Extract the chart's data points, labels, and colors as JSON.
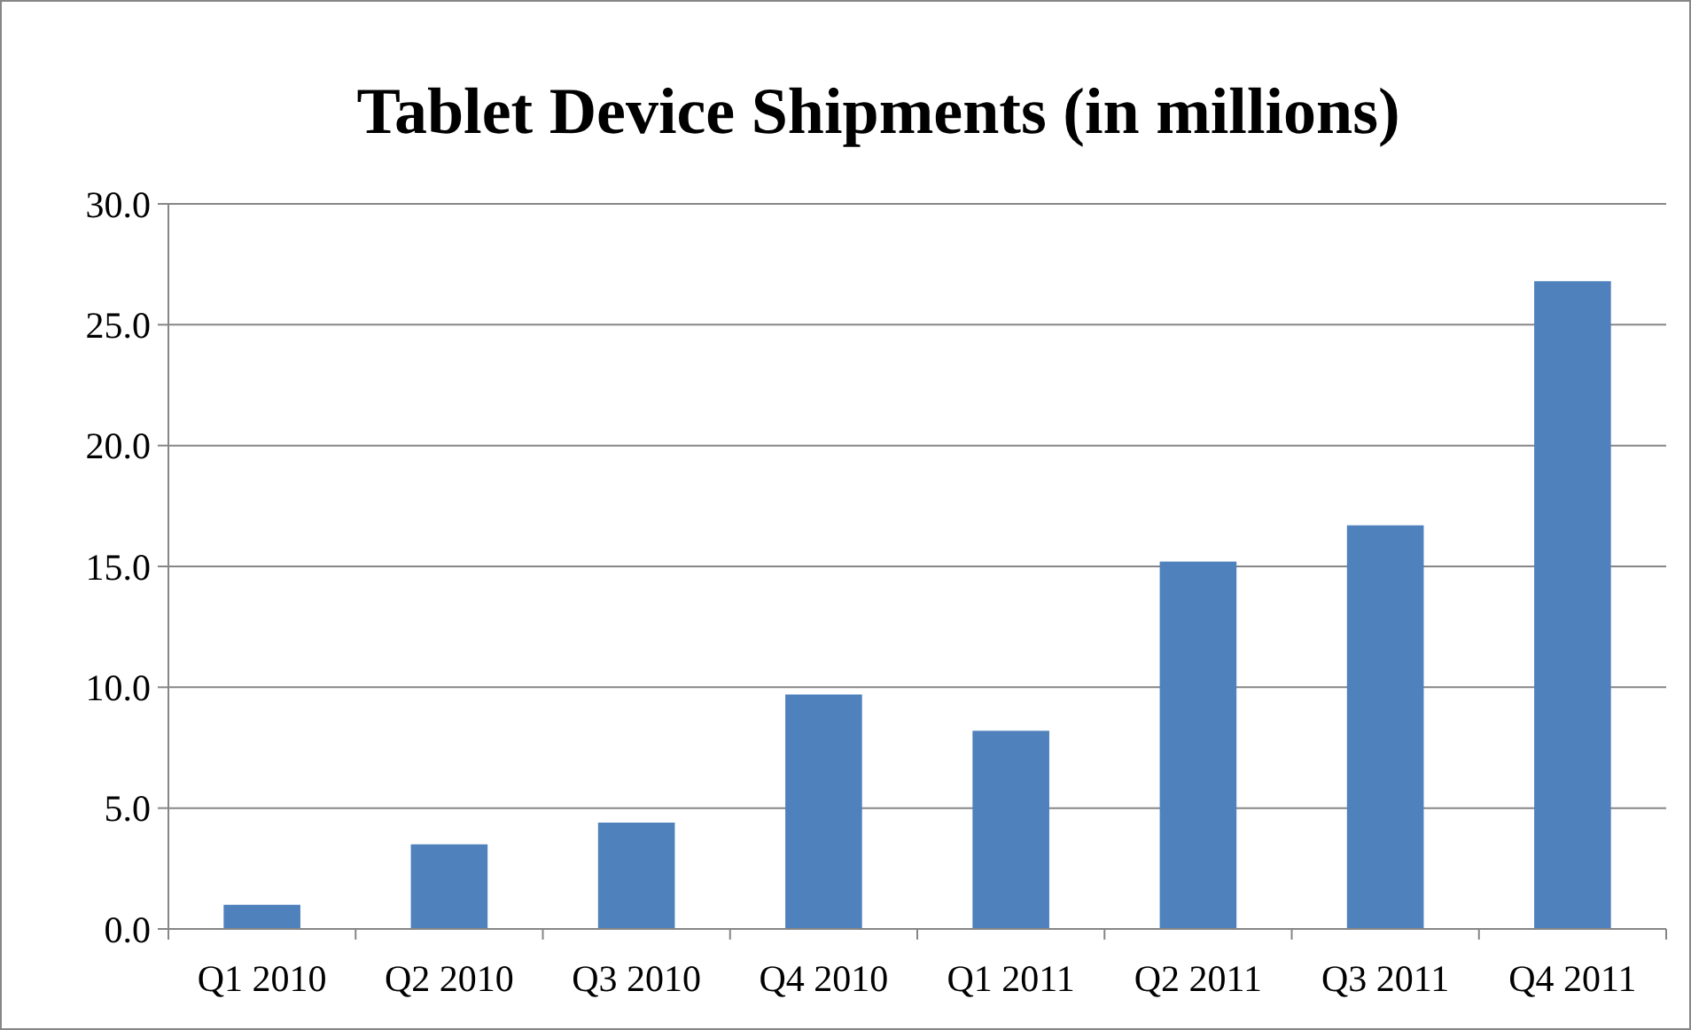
{
  "chart_data": {
    "type": "bar",
    "title": "Tablet Device Shipments (in millions)",
    "categories": [
      "Q1 2010",
      "Q2 2010",
      "Q3 2010",
      "Q4 2010",
      "Q1 2011",
      "Q2 2011",
      "Q3 2011",
      "Q4 2011"
    ],
    "values": [
      1.0,
      3.5,
      4.4,
      9.7,
      8.2,
      15.2,
      16.7,
      26.8
    ],
    "color": "#4f81bd",
    "ylim": [
      0,
      30
    ],
    "yticks": [
      {
        "value": 0,
        "label": "0.0"
      },
      {
        "value": 5,
        "label": "5.0"
      },
      {
        "value": 10,
        "label": "10.0"
      },
      {
        "value": 15,
        "label": "15.0"
      },
      {
        "value": 20,
        "label": "20.0"
      },
      {
        "value": 25,
        "label": "25.0"
      },
      {
        "value": 30,
        "label": "30.0"
      }
    ],
    "grid": "y"
  }
}
